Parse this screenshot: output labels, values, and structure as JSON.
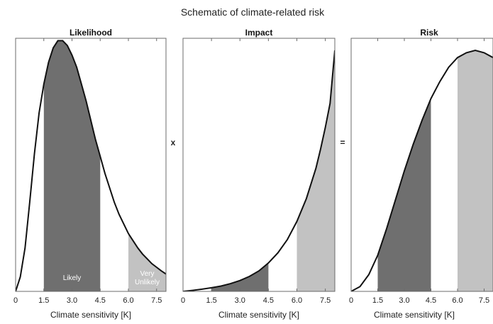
{
  "figure": {
    "title": "Schematic of climate-related risk",
    "operators": [
      "x",
      "="
    ]
  },
  "colors": {
    "likely_band": "#6f6f6f",
    "very_unlikely_band": "#c2c2c2",
    "curve": "#111111",
    "frame": "#6b6b6b"
  },
  "chart_data": [
    {
      "type": "area",
      "title": "Likelihood",
      "xlabel": "Climate sensitivity [K]",
      "ylabel": "",
      "xlim": [
        0,
        8
      ],
      "ylim": [
        0,
        1.05
      ],
      "xticks": [
        0,
        1.5,
        3.0,
        4.5,
        6.0,
        7.5
      ],
      "tick_labels": [
        "0",
        "1.5",
        "3.0",
        "4.5",
        "6.0",
        "7.5"
      ],
      "x": [
        0,
        0.25,
        0.5,
        0.75,
        1.0,
        1.25,
        1.5,
        1.75,
        2.0,
        2.25,
        2.5,
        2.75,
        3.0,
        3.25,
        3.5,
        3.75,
        4.0,
        4.25,
        4.5,
        4.75,
        5.0,
        5.25,
        5.5,
        5.75,
        6.0,
        6.25,
        6.5,
        6.75,
        7.0,
        7.25,
        7.5,
        7.75,
        8.0
      ],
      "y": [
        0.0,
        0.06,
        0.18,
        0.37,
        0.57,
        0.74,
        0.86,
        0.95,
        1.01,
        1.04,
        1.04,
        1.02,
        0.98,
        0.93,
        0.86,
        0.79,
        0.71,
        0.63,
        0.56,
        0.49,
        0.43,
        0.37,
        0.32,
        0.28,
        0.24,
        0.21,
        0.18,
        0.155,
        0.135,
        0.115,
        0.1,
        0.085,
        0.072
      ],
      "bands": [
        {
          "from": 1.5,
          "to": 4.5,
          "shade": "likely",
          "label": "Likely"
        },
        {
          "from": 6.0,
          "to": 8.0,
          "shade": "very_unlikely",
          "label": "Very Unlikely"
        }
      ]
    },
    {
      "type": "area",
      "title": "Impact",
      "xlabel": "Climate sensitivity [K]",
      "ylabel": "",
      "xlim": [
        0,
        8
      ],
      "ylim": [
        0,
        1.05
      ],
      "xticks": [
        0,
        1.5,
        3.0,
        4.5,
        6.0,
        7.5
      ],
      "tick_labels": [
        "0",
        "1.5",
        "3.0",
        "4.5",
        "6.0",
        "7.5"
      ],
      "x": [
        0,
        0.5,
        1.0,
        1.5,
        2.0,
        2.5,
        3.0,
        3.5,
        4.0,
        4.5,
        5.0,
        5.5,
        6.0,
        6.5,
        7.0,
        7.25,
        7.5,
        7.75,
        8.0
      ],
      "y": [
        0.0,
        0.004,
        0.009,
        0.015,
        0.022,
        0.032,
        0.045,
        0.062,
        0.085,
        0.118,
        0.16,
        0.215,
        0.29,
        0.385,
        0.51,
        0.59,
        0.68,
        0.78,
        1.0
      ],
      "bands": [
        {
          "from": 1.5,
          "to": 4.5,
          "shade": "likely",
          "label": ""
        },
        {
          "from": 6.0,
          "to": 8.0,
          "shade": "very_unlikely",
          "label": ""
        }
      ]
    },
    {
      "type": "area",
      "title": "Risk",
      "xlabel": "Climate sensitivity [K]",
      "ylabel": "",
      "xlim": [
        0,
        8
      ],
      "ylim": [
        0,
        1.05
      ],
      "xticks": [
        0,
        1.5,
        3.0,
        4.5,
        6.0,
        7.5
      ],
      "tick_labels": [
        "0",
        "1.5",
        "3.0",
        "4.5",
        "6.0",
        "7.5"
      ],
      "x": [
        0,
        0.5,
        1.0,
        1.5,
        2.0,
        2.5,
        3.0,
        3.5,
        4.0,
        4.5,
        5.0,
        5.5,
        6.0,
        6.5,
        7.0,
        7.5,
        8.0
      ],
      "y": [
        0.0,
        0.02,
        0.07,
        0.15,
        0.26,
        0.38,
        0.5,
        0.61,
        0.71,
        0.8,
        0.87,
        0.93,
        0.97,
        0.99,
        1.0,
        0.99,
        0.97
      ],
      "bands": [
        {
          "from": 1.5,
          "to": 4.5,
          "shade": "likely",
          "label": ""
        },
        {
          "from": 6.0,
          "to": 8.0,
          "shade": "very_unlikely",
          "label": ""
        }
      ]
    }
  ]
}
